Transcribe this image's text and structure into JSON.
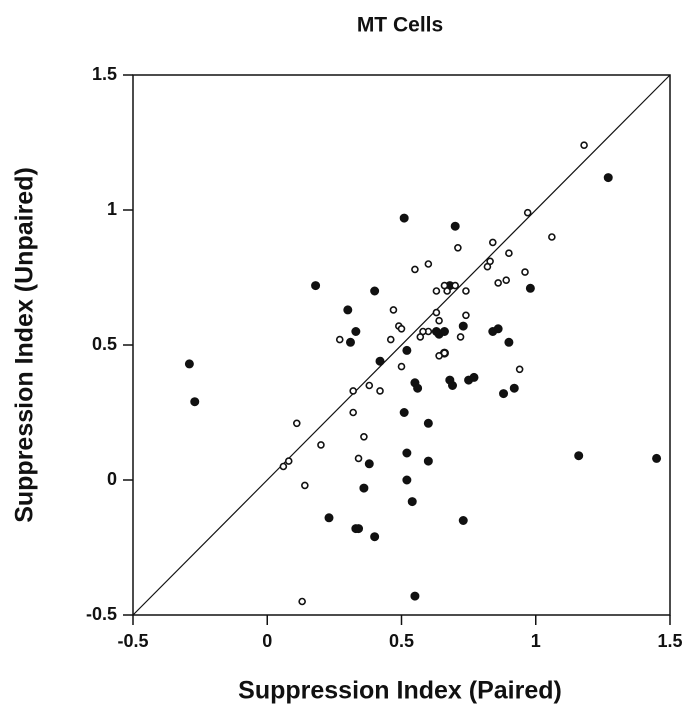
{
  "chart_data": {
    "type": "scatter",
    "title": "MT Cells",
    "x_label": "Suppression Index (Paired)",
    "y_label": "Suppression Index (Unpaired)",
    "xlim": [
      -0.5,
      1.5
    ],
    "ylim": [
      -0.5,
      1.5
    ],
    "xticks": [
      -0.5,
      0,
      0.5,
      1,
      1.5
    ],
    "yticks": [
      -0.5,
      0,
      0.5,
      1,
      1.5
    ],
    "diagonal": true,
    "series": [
      {
        "marker": "filled",
        "color": "#111111",
        "x": [
          0.51,
          0.7,
          1.27,
          0.18,
          0.4,
          0.3,
          0.33,
          0.31,
          0.42,
          -0.29,
          -0.27,
          0.52,
          0.55,
          0.56,
          0.64,
          0.66,
          0.68,
          0.69,
          0.73,
          0.75,
          0.77,
          0.84,
          0.86,
          0.88,
          0.9,
          0.92,
          0.98,
          0.66,
          0.51,
          0.6,
          0.38,
          0.36,
          0.6,
          0.52,
          0.52,
          0.54,
          0.23,
          0.33,
          0.34,
          0.4,
          0.73,
          0.55,
          1.16,
          1.45,
          0.63,
          0.68
        ],
        "values": [
          0.97,
          0.94,
          1.12,
          0.72,
          0.7,
          0.63,
          0.55,
          0.51,
          0.44,
          0.43,
          0.29,
          0.48,
          0.36,
          0.34,
          0.54,
          0.55,
          0.37,
          0.35,
          0.57,
          0.37,
          0.38,
          0.55,
          0.56,
          0.32,
          0.51,
          0.34,
          0.71,
          0.47,
          0.25,
          0.21,
          0.06,
          -0.03,
          0.07,
          0.1,
          0.0,
          -0.08,
          -0.14,
          -0.18,
          -0.18,
          -0.21,
          -0.15,
          -0.43,
          0.09,
          0.08,
          0.55,
          0.72
        ]
      },
      {
        "marker": "open",
        "color": "#111111",
        "x": [
          1.18,
          0.97,
          1.06,
          0.84,
          0.71,
          0.83,
          0.82,
          0.6,
          0.55,
          0.66,
          0.67,
          0.7,
          0.74,
          0.86,
          0.89,
          0.9,
          0.96,
          0.47,
          0.63,
          0.27,
          0.49,
          0.5,
          0.57,
          0.6,
          0.63,
          0.64,
          0.74,
          0.46,
          0.5,
          0.64,
          0.66,
          0.72,
          0.94,
          0.38,
          0.32,
          0.42,
          0.32,
          0.11,
          0.2,
          0.36,
          0.34,
          0.06,
          0.08,
          0.14,
          0.13,
          0.58
        ],
        "values": [
          1.24,
          0.99,
          0.9,
          0.88,
          0.86,
          0.81,
          0.79,
          0.8,
          0.78,
          0.72,
          0.7,
          0.72,
          0.7,
          0.73,
          0.74,
          0.84,
          0.77,
          0.63,
          0.7,
          0.52,
          0.57,
          0.56,
          0.53,
          0.55,
          0.62,
          0.59,
          0.61,
          0.52,
          0.42,
          0.46,
          0.47,
          0.53,
          0.41,
          0.35,
          0.33,
          0.33,
          0.25,
          0.21,
          0.13,
          0.16,
          0.08,
          0.05,
          0.07,
          -0.02,
          -0.45,
          0.55
        ]
      }
    ]
  }
}
